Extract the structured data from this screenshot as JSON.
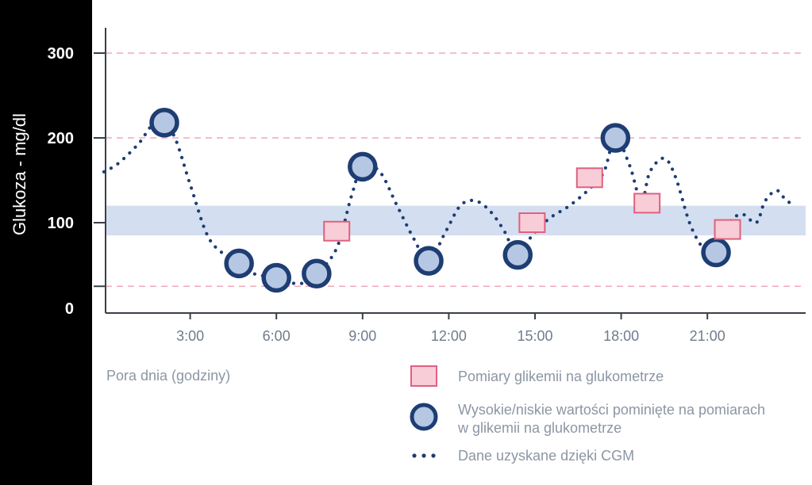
{
  "chart_data": {
    "type": "line",
    "title": "",
    "xlabel": "Pora dnia (godziny)",
    "ylabel": "Glukoza - mg/dl",
    "xlim": [
      0,
      24
    ],
    "ylim": [
      0,
      300
    ],
    "x_ticks": [
      {
        "value": 3,
        "label": "3:00"
      },
      {
        "value": 6,
        "label": "6:00"
      },
      {
        "value": 9,
        "label": "9:00"
      },
      {
        "value": 12,
        "label": "12:00"
      },
      {
        "value": 15,
        "label": "15:00"
      },
      {
        "value": 18,
        "label": "18:00"
      },
      {
        "value": 21,
        "label": "21:00"
      }
    ],
    "y_ticks": [
      {
        "value": 0,
        "label": "0"
      },
      {
        "value": 100,
        "label": "100"
      },
      {
        "value": 200,
        "label": "200"
      },
      {
        "value": 300,
        "label": "300"
      }
    ],
    "gridlines_y": [
      25,
      200,
      300
    ],
    "target_range": [
      85,
      120
    ],
    "grid": true,
    "legend_position": "bottom-right",
    "series": [
      {
        "name": "Dane uzyskane dzięki CGM",
        "marker": "dotted-line",
        "color": "#1e3d73",
        "x": [
          0,
          0.5,
          1.2,
          1.8,
          2.4,
          3.0,
          3.6,
          4.2,
          4.7,
          5.2,
          6.0,
          6.8,
          7.4,
          8.1,
          8.6,
          9.0,
          9.6,
          10.2,
          10.8,
          11.3,
          11.9,
          12.4,
          12.9,
          13.4,
          13.9,
          14.4,
          14.9,
          15.5,
          16.2,
          16.9,
          17.4,
          17.8,
          18.3,
          18.7,
          19.0,
          19.5,
          19.9,
          20.4,
          20.9,
          21.3,
          21.7,
          22.2,
          22.7,
          23.0,
          23.4,
          23.7,
          24.0
        ],
        "y": [
          160,
          170,
          193,
          218,
          205,
          145,
          85,
          62,
          52,
          40,
          35,
          28,
          40,
          70,
          130,
          166,
          160,
          120,
          80,
          55,
          90,
          120,
          126,
          115,
          92,
          62,
          85,
          105,
          120,
          140,
          160,
          200,
          167,
          125,
          160,
          176,
          153,
          98,
          68,
          65,
          98,
          110,
          100,
          125,
          138,
          128,
          120
        ]
      },
      {
        "name": "Wysokie/niskie wartości pominięte na pomiarach w glikemii na glukometrze",
        "marker": "circle",
        "color": "#1e3d73",
        "fill": "#b5c7e3",
        "x": [
          2.1,
          4.7,
          6.0,
          7.4,
          9.0,
          11.3,
          14.4,
          17.8,
          21.3
        ],
        "y": [
          218,
          52,
          35,
          40,
          166,
          55,
          62,
          200,
          65
        ]
      },
      {
        "name": "Pomiary glikemii na glukometrze",
        "marker": "square",
        "color": "#e0607e",
        "fill": "#f8cdd8",
        "x": [
          8.1,
          14.9,
          16.9,
          18.9,
          21.7
        ],
        "y": [
          90,
          100,
          153,
          123,
          92
        ]
      }
    ],
    "legend": [
      {
        "marker": "square",
        "label": "Pomiary glikemii na glukometrze"
      },
      {
        "marker": "circle",
        "label_lines": [
          "Wysokie/niskie wartości pominięte na pomiarach",
          "w glikemii na glukometrze"
        ]
      },
      {
        "marker": "dots",
        "label": "Dane uzyskane dzięki CGM"
      }
    ]
  }
}
